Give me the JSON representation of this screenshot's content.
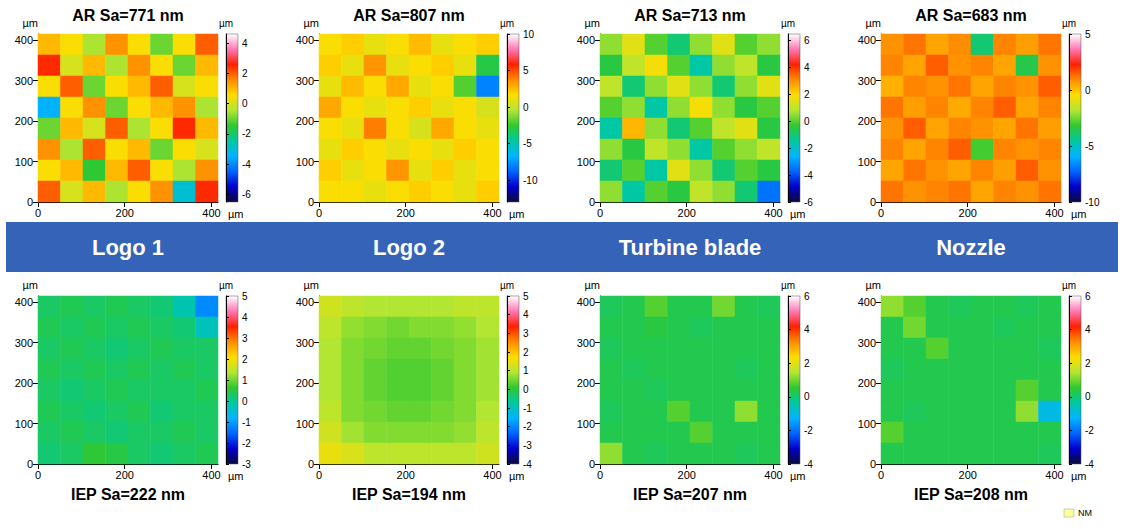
{
  "band": {
    "labels": [
      "Logo 1",
      "Logo 2",
      "Turbine blade",
      "Nozzle"
    ]
  },
  "chart_data": [
    {
      "type": "heatmap",
      "title": "AR Sa=771 nm",
      "xlabel": "µm",
      "ylabel": "µm",
      "xlim": [
        0,
        415
      ],
      "xticks": [
        0,
        200,
        400
      ],
      "ylim": [
        0,
        415
      ],
      "yticks": [
        0,
        100,
        200,
        300,
        400
      ],
      "cells": [
        [
          1.0,
          0.5,
          -0.5,
          1.5,
          0.5,
          -1.0,
          0.5,
          2.0
        ],
        [
          2.5,
          0.0,
          1.0,
          -0.5,
          1.5,
          0.5,
          -1.0,
          1.0
        ],
        [
          0.5,
          2.0,
          -1.0,
          0.5,
          1.0,
          2.0,
          0.0,
          0.5
        ],
        [
          -3.5,
          0.5,
          1.5,
          -1.0,
          0.5,
          1.0,
          1.5,
          -0.5
        ],
        [
          -1.0,
          1.0,
          0.0,
          2.0,
          -0.5,
          0.5,
          2.5,
          1.0
        ],
        [
          1.5,
          -0.5,
          2.0,
          0.5,
          1.0,
          -1.0,
          0.5,
          0.0
        ],
        [
          0.5,
          1.0,
          -1.5,
          1.0,
          2.0,
          0.5,
          -0.5,
          1.5
        ],
        [
          2.0,
          0.0,
          1.0,
          -0.5,
          0.5,
          1.5,
          -3.0,
          2.5
        ]
      ],
      "colorbar": {
        "label": "µm",
        "range": [
          -6.5,
          4.6
        ],
        "ticks": [
          -6,
          -4,
          -2,
          0,
          2,
          4
        ]
      }
    },
    {
      "type": "heatmap",
      "title": "AR Sa=807 nm",
      "xlabel": "µm",
      "ylabel": "µm",
      "xlim": [
        0,
        415
      ],
      "xticks": [
        0,
        200,
        400
      ],
      "ylim": [
        0,
        415
      ],
      "yticks": [
        0,
        100,
        200,
        300,
        400
      ],
      "cells": [
        [
          1.5,
          2.0,
          1.0,
          1.5,
          2.5,
          1.0,
          1.5,
          2.0
        ],
        [
          2.0,
          1.0,
          3.5,
          1.0,
          1.5,
          2.0,
          1.0,
          -3.0
        ],
        [
          1.0,
          2.5,
          1.5,
          3.0,
          1.0,
          1.5,
          -2.0,
          -8.0
        ],
        [
          3.0,
          1.5,
          1.0,
          1.5,
          2.0,
          1.0,
          1.5,
          0.5
        ],
        [
          1.5,
          1.0,
          4.0,
          1.5,
          0.5,
          3.0,
          1.5,
          1.0
        ],
        [
          1.0,
          2.0,
          1.5,
          1.0,
          1.5,
          1.0,
          2.0,
          1.5
        ],
        [
          2.0,
          1.0,
          1.5,
          3.5,
          1.0,
          2.0,
          1.0,
          1.5
        ],
        [
          1.5,
          1.5,
          1.0,
          1.5,
          2.0,
          1.5,
          1.0,
          2.0
        ]
      ],
      "colorbar": {
        "label": "µm",
        "range": [
          -13,
          10
        ],
        "ticks": [
          -10,
          -5,
          0,
          5,
          10
        ]
      }
    },
    {
      "type": "heatmap",
      "title": "AR Sa=713 nm",
      "xlabel": "µm",
      "ylabel": "µm",
      "xlim": [
        0,
        415
      ],
      "xticks": [
        0,
        200,
        400
      ],
      "ylim": [
        0,
        415
      ],
      "yticks": [
        0,
        100,
        200,
        300,
        400
      ],
      "cells": [
        [
          0.5,
          1.5,
          0.0,
          -1.0,
          0.5,
          1.5,
          0.0,
          0.5
        ],
        [
          -0.5,
          1.0,
          1.8,
          0.0,
          -1.5,
          0.5,
          1.0,
          -0.5
        ],
        [
          1.0,
          -1.0,
          0.5,
          1.5,
          0.5,
          -1.0,
          0.5,
          1.5
        ],
        [
          0.0,
          0.5,
          -1.5,
          0.5,
          1.8,
          0.5,
          -0.5,
          0.0
        ],
        [
          -1.5,
          2.5,
          0.5,
          -1.0,
          0.0,
          1.0,
          1.5,
          -0.5
        ],
        [
          0.5,
          -0.5,
          1.0,
          0.5,
          -1.5,
          0.0,
          0.5,
          1.0
        ],
        [
          -1.0,
          0.0,
          -1.5,
          1.5,
          0.5,
          -1.0,
          0.0,
          -0.5
        ],
        [
          0.5,
          -1.5,
          0.0,
          -0.5,
          1.0,
          0.5,
          -1.0,
          -3.5
        ]
      ],
      "colorbar": {
        "label": "µm",
        "range": [
          -6,
          6.5
        ],
        "ticks": [
          -6,
          -4,
          -2,
          0,
          2,
          4,
          6
        ]
      }
    },
    {
      "type": "heatmap",
      "title": "AR Sa=683 nm",
      "xlabel": "µm",
      "ylabel": "µm",
      "xlim": [
        0,
        415
      ],
      "xticks": [
        0,
        200,
        400
      ],
      "ylim": [
        0,
        415
      ],
      "yticks": [
        0,
        100,
        200,
        300,
        400
      ],
      "cells": [
        [
          0.8,
          1.2,
          0.5,
          0.9,
          -4.0,
          1.0,
          0.6,
          1.2
        ],
        [
          1.0,
          0.5,
          1.5,
          0.8,
          1.0,
          0.5,
          -3.5,
          0.8
        ],
        [
          0.3,
          1.0,
          0.8,
          1.2,
          0.5,
          1.0,
          0.8,
          1.5
        ],
        [
          1.2,
          0.6,
          1.0,
          0.4,
          1.0,
          1.5,
          0.5,
          1.0
        ],
        [
          0.8,
          1.5,
          0.5,
          1.0,
          0.8,
          0.5,
          1.2,
          0.6
        ],
        [
          1.0,
          0.5,
          1.0,
          1.5,
          -3.0,
          1.0,
          0.8,
          1.0
        ],
        [
          0.5,
          1.2,
          0.8,
          0.5,
          1.0,
          0.6,
          1.5,
          0.8
        ],
        [
          1.2,
          0.8,
          1.0,
          1.2,
          0.5,
          1.0,
          0.8,
          1.2
        ]
      ],
      "colorbar": {
        "label": "µm",
        "range": [
          -10,
          5
        ],
        "ticks": [
          -10,
          -5,
          0,
          5
        ]
      }
    },
    {
      "type": "heatmap",
      "title": "IEP Sa=222 nm",
      "xlabel": "µm",
      "ylabel": "µm",
      "xlim": [
        0,
        415
      ],
      "xticks": [
        0,
        200,
        400
      ],
      "ylim": [
        0,
        415
      ],
      "yticks": [
        0,
        100,
        200,
        300,
        400
      ],
      "cells": [
        [
          0.3,
          0.4,
          0.3,
          0.4,
          0.3,
          0.2,
          -0.2,
          -1.2
        ],
        [
          0.4,
          0.3,
          0.4,
          0.3,
          0.4,
          0.3,
          0.2,
          -0.3
        ],
        [
          0.3,
          0.4,
          0.3,
          0.2,
          0.3,
          0.4,
          0.3,
          0.3
        ],
        [
          0.4,
          0.3,
          0.4,
          0.3,
          0.4,
          0.3,
          0.4,
          0.3
        ],
        [
          0.3,
          0.2,
          0.3,
          0.4,
          0.3,
          0.3,
          0.3,
          0.4
        ],
        [
          0.4,
          0.3,
          0.2,
          0.3,
          0.4,
          0.2,
          0.3,
          0.3
        ],
        [
          0.3,
          0.4,
          0.3,
          0.2,
          0.3,
          0.3,
          0.4,
          0.3
        ],
        [
          0.2,
          0.3,
          0.6,
          0.5,
          0.3,
          0.2,
          0.3,
          0.4
        ]
      ],
      "colorbar": {
        "label": "µm",
        "range": [
          -3,
          5
        ],
        "ticks": [
          -3,
          -2,
          -1,
          0,
          1,
          2,
          3,
          4,
          5
        ]
      }
    },
    {
      "type": "heatmap",
      "title": "IEP Sa=194 nm",
      "xlabel": "µm",
      "ylabel": "µm",
      "xlim": [
        0,
        415
      ],
      "xticks": [
        0,
        200,
        400
      ],
      "ylim": [
        0,
        415
      ],
      "yticks": [
        0,
        100,
        200,
        300,
        400
      ],
      "cells": [
        [
          1.2,
          1.0,
          0.9,
          0.9,
          0.9,
          0.9,
          1.0,
          1.0
        ],
        [
          1.0,
          0.7,
          0.6,
          0.5,
          0.6,
          0.6,
          0.7,
          0.9
        ],
        [
          0.9,
          0.6,
          0.5,
          0.4,
          0.4,
          0.5,
          0.6,
          0.8
        ],
        [
          0.9,
          0.6,
          0.4,
          0.3,
          0.3,
          0.4,
          0.6,
          0.8
        ],
        [
          0.9,
          0.6,
          0.4,
          0.3,
          0.3,
          0.4,
          0.6,
          0.8
        ],
        [
          1.0,
          0.6,
          0.5,
          0.4,
          0.4,
          0.5,
          0.6,
          0.9
        ],
        [
          1.2,
          0.8,
          0.6,
          0.6,
          0.6,
          0.6,
          0.7,
          1.0
        ],
        [
          1.5,
          1.3,
          1.0,
          1.0,
          1.0,
          1.0,
          1.0,
          1.2
        ]
      ],
      "colorbar": {
        "label": "µm",
        "range": [
          -4,
          5
        ],
        "ticks": [
          -4,
          -3,
          -2,
          -1,
          0,
          1,
          2,
          3,
          4,
          5
        ]
      }
    },
    {
      "type": "heatmap",
      "title": "IEP Sa=207 nm",
      "xlabel": "µm",
      "ylabel": "µm",
      "xlim": [
        0,
        415
      ],
      "xticks": [
        0,
        200,
        400
      ],
      "ylim": [
        0,
        415
      ],
      "yticks": [
        0,
        100,
        200,
        300,
        400
      ],
      "cells": [
        [
          0.2,
          0.3,
          0.8,
          0.3,
          0.3,
          1.0,
          0.3,
          0.2
        ],
        [
          0.3,
          0.3,
          0.4,
          0.3,
          0.2,
          0.3,
          0.3,
          0.3
        ],
        [
          0.2,
          0.3,
          0.3,
          0.3,
          0.3,
          0.3,
          0.3,
          0.3
        ],
        [
          0.3,
          0.2,
          0.3,
          0.3,
          0.3,
          0.3,
          0.2,
          0.3
        ],
        [
          0.3,
          0.3,
          0.2,
          0.3,
          0.3,
          0.3,
          0.3,
          0.3
        ],
        [
          0.2,
          0.3,
          0.3,
          0.8,
          0.3,
          0.3,
          1.2,
          0.3
        ],
        [
          0.3,
          0.3,
          0.3,
          0.3,
          0.8,
          0.3,
          0.3,
          0.3
        ],
        [
          1.2,
          0.3,
          0.2,
          0.3,
          0.3,
          0.3,
          0.2,
          0.3
        ]
      ],
      "colorbar": {
        "label": "µm",
        "range": [
          -4,
          6
        ],
        "ticks": [
          -4,
          -2,
          0,
          2,
          4,
          6
        ]
      }
    },
    {
      "type": "heatmap",
      "title": "IEP Sa=208 nm",
      "xlabel": "µm",
      "ylabel": "µm",
      "xlim": [
        0,
        415
      ],
      "xticks": [
        0,
        200,
        400
      ],
      "ylim": [
        0,
        415
      ],
      "yticks": [
        0,
        100,
        200,
        300,
        400
      ],
      "cells": [
        [
          1.2,
          0.8,
          0.3,
          0.2,
          0.3,
          0.3,
          0.2,
          0.3
        ],
        [
          0.3,
          1.0,
          0.3,
          0.3,
          0.3,
          0.2,
          0.3,
          0.3
        ],
        [
          0.3,
          0.3,
          0.8,
          0.3,
          0.3,
          0.3,
          0.3,
          0.2
        ],
        [
          0.2,
          0.3,
          0.3,
          0.3,
          0.3,
          0.3,
          0.3,
          0.3
        ],
        [
          0.3,
          0.3,
          0.3,
          0.3,
          0.3,
          0.3,
          0.8,
          0.3
        ],
        [
          0.3,
          0.2,
          0.3,
          0.3,
          0.3,
          0.3,
          1.2,
          -1.0
        ],
        [
          0.8,
          0.3,
          0.3,
          0.3,
          0.3,
          0.3,
          0.3,
          0.3
        ],
        [
          0.3,
          0.3,
          0.3,
          0.3,
          0.3,
          0.3,
          0.3,
          0.2
        ]
      ],
      "colorbar": {
        "label": "µm",
        "range": [
          -4,
          6
        ],
        "ticks": [
          -4,
          -2,
          0,
          2,
          4,
          6
        ]
      },
      "annotations": [
        "NM"
      ]
    }
  ]
}
